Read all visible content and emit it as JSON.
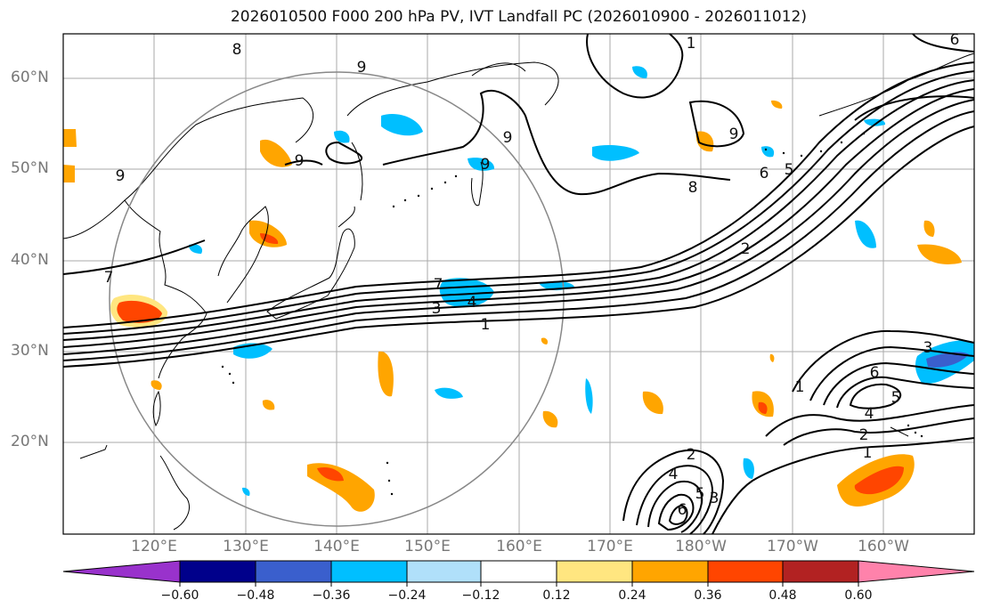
{
  "title": "2026010500 F000 200 hPa PV, IVT Landfall PC (2026010900 - 2026011012)",
  "map": {
    "lon_range": [
      110,
      210
    ],
    "lat_range": [
      10,
      65
    ],
    "lat_ticks": [
      "60°N",
      "50°N",
      "40°N",
      "30°N",
      "20°N"
    ],
    "lon_ticks": [
      "120°E",
      "130°E",
      "140°E",
      "150°E",
      "160°E",
      "170°E",
      "180°W",
      "170°W",
      "160°W"
    ],
    "contour_labels": [
      "8",
      "9",
      "9",
      "9",
      "9",
      "9",
      "6",
      "1",
      "9",
      "8",
      "6",
      "5",
      "2",
      "7",
      "7",
      "4",
      "3",
      "1",
      "3",
      "6",
      "5",
      "4",
      "2",
      "1",
      "1",
      "2",
      "4",
      "5",
      "3",
      "6"
    ]
  },
  "colorbar": {
    "labels": [
      "−0.60",
      "−0.48",
      "−0.36",
      "−0.24",
      "−0.12",
      "0.12",
      "0.24",
      "0.36",
      "0.48",
      "0.60"
    ],
    "colors": [
      "#9932cc",
      "#00008b",
      "#3a5fcd",
      "#00bfff",
      "#b0e0fa",
      "#ffffff",
      "#ffe680",
      "#ffa500",
      "#ff4500",
      "#b22222",
      "#ff82ab"
    ]
  }
}
